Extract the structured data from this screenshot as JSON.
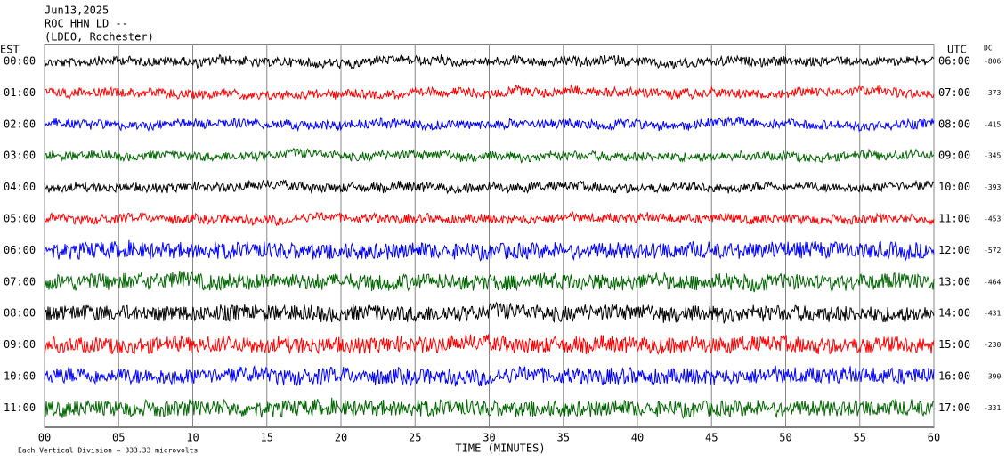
{
  "header": {
    "date": "Jun13,2025",
    "station": "ROC HHN LD --",
    "location": "(LDEO, Rochester)"
  },
  "left_axis_title": "EST",
  "right_axis_title": "UTC",
  "dc_title": "DC",
  "rows": [
    {
      "est": "00:00",
      "utc": "06:00",
      "dc": "-806",
      "color": "#000000"
    },
    {
      "est": "01:00",
      "utc": "07:00",
      "dc": "-373",
      "color": "#ff0000"
    },
    {
      "est": "02:00",
      "utc": "08:00",
      "dc": "-415",
      "color": "#0000ff"
    },
    {
      "est": "03:00",
      "utc": "09:00",
      "dc": "-345",
      "color": "#006600"
    },
    {
      "est": "04:00",
      "utc": "10:00",
      "dc": "-393",
      "color": "#000000"
    },
    {
      "est": "05:00",
      "utc": "11:00",
      "dc": "-453",
      "color": "#ff0000"
    },
    {
      "est": "06:00",
      "utc": "12:00",
      "dc": "-572",
      "color": "#0000ff"
    },
    {
      "est": "07:00",
      "utc": "13:00",
      "dc": "-464",
      "color": "#006600"
    },
    {
      "est": "08:00",
      "utc": "14:00",
      "dc": "-431",
      "color": "#000000"
    },
    {
      "est": "09:00",
      "utc": "15:00",
      "dc": "-230",
      "color": "#ff0000"
    },
    {
      "est": "10:00",
      "utc": "16:00",
      "dc": "-390",
      "color": "#0000ff"
    },
    {
      "est": "11:00",
      "utc": "17:00",
      "dc": "-331",
      "color": "#006600"
    }
  ],
  "x_axis": {
    "title": "TIME (MINUTES)",
    "ticks": [
      "00",
      "05",
      "10",
      "15",
      "20",
      "25",
      "30",
      "35",
      "40",
      "45",
      "50",
      "55",
      "60"
    ]
  },
  "scale_note": "Each Vertical Division =  333.33 microvolts"
}
